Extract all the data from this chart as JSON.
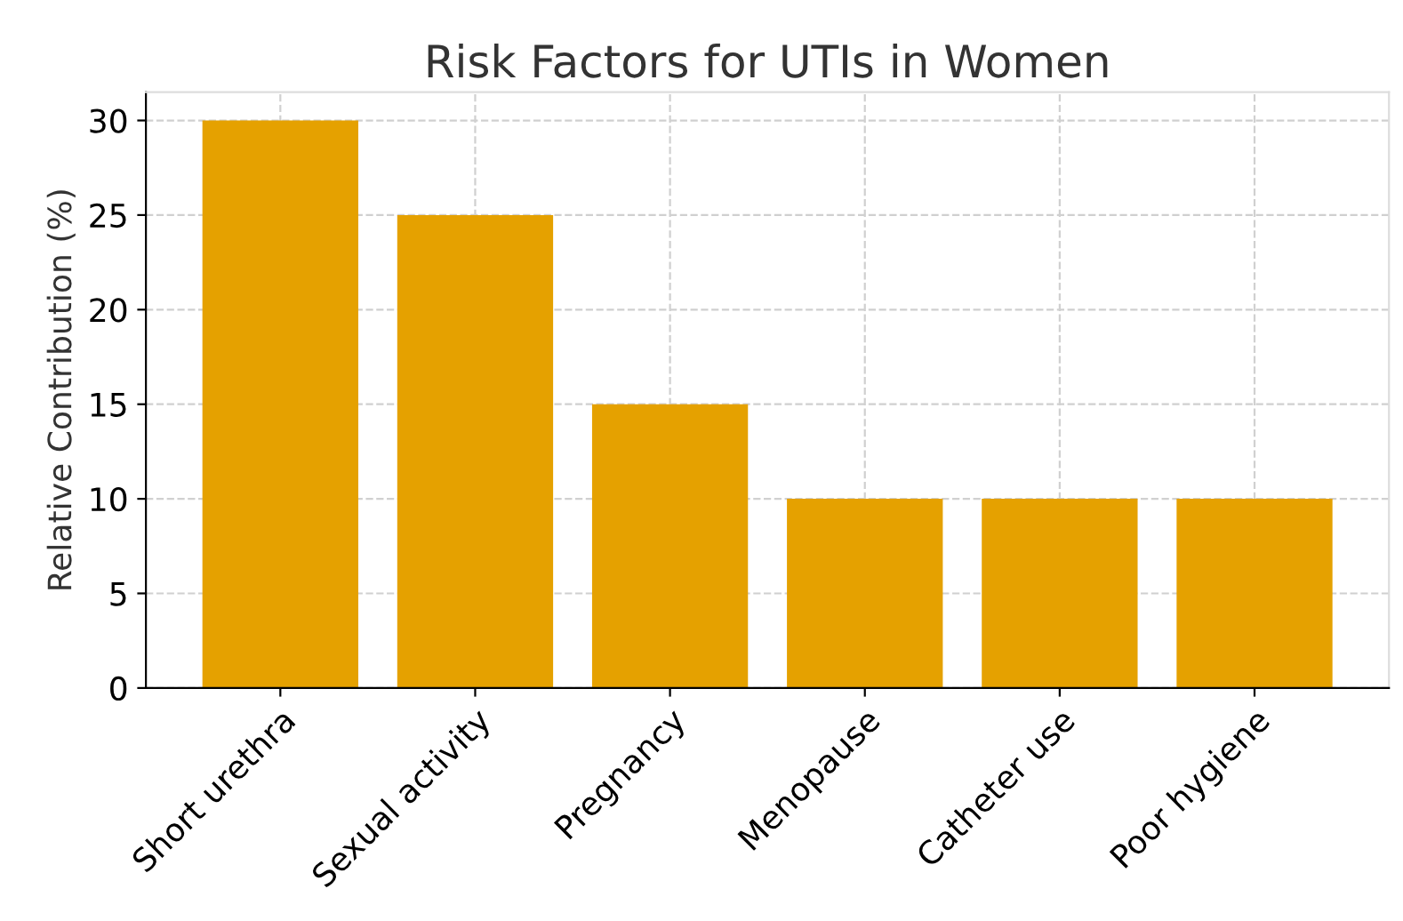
{
  "chart_data": {
    "type": "bar",
    "title": "Risk Factors for UTIs in Women",
    "ylabel": "Relative Contribution (%)",
    "categories": [
      "Short urethra",
      "Sexual activity",
      "Pregnancy",
      "Menopause",
      "Catheter use",
      "Poor hygiene"
    ],
    "values": [
      30,
      25,
      15,
      10,
      10,
      10
    ],
    "color": "#e5a100",
    "ylim": [
      0,
      31.5
    ],
    "yticks": [
      0,
      5,
      10,
      15,
      20,
      25,
      30
    ],
    "grid": true
  }
}
